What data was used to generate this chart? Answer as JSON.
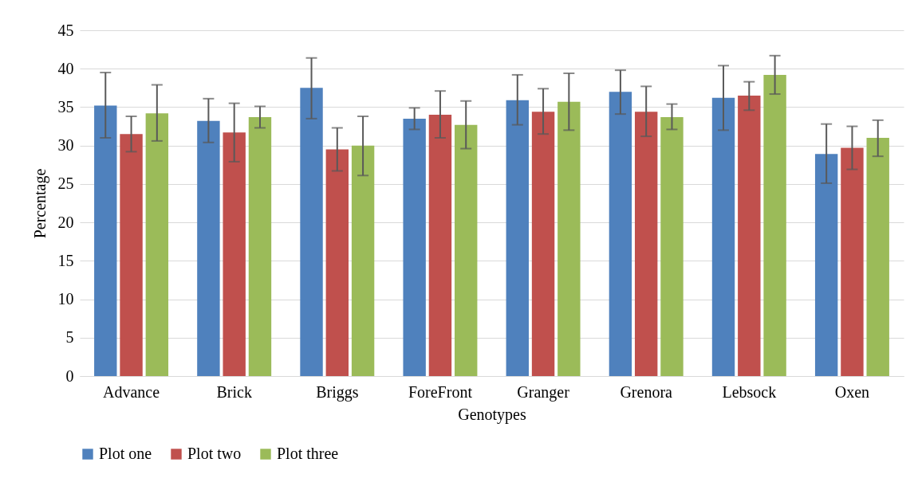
{
  "chart_data": {
    "type": "bar",
    "xlabel": "Genotypes",
    "ylabel": "Percentage",
    "categories": [
      "Advance",
      "Brick",
      "Briggs",
      "ForeFront",
      "Granger",
      "Grenora",
      "Lebsock",
      "Oxen"
    ],
    "series": [
      {
        "name": "Plot one",
        "color": "#4f81bd",
        "values": [
          35.2,
          33.2,
          37.5,
          33.5,
          35.9,
          37.0,
          36.2,
          28.9
        ],
        "errors": [
          [
            31.0,
            39.5
          ],
          [
            30.4,
            36.1
          ],
          [
            33.5,
            41.4
          ],
          [
            32.1,
            34.9
          ],
          [
            32.7,
            39.2
          ],
          [
            34.1,
            39.8
          ],
          [
            32.0,
            40.4
          ],
          [
            25.1,
            32.8
          ]
        ]
      },
      {
        "name": "Plot two",
        "color": "#c0504d",
        "values": [
          31.5,
          31.7,
          29.5,
          34.0,
          34.4,
          34.4,
          36.5,
          29.7
        ],
        "errors": [
          [
            29.2,
            33.8
          ],
          [
            27.9,
            35.5
          ],
          [
            26.7,
            32.3
          ],
          [
            31.0,
            37.1
          ],
          [
            31.5,
            37.4
          ],
          [
            31.2,
            37.7
          ],
          [
            34.6,
            38.3
          ],
          [
            26.9,
            32.5
          ]
        ]
      },
      {
        "name": "Plot three",
        "color": "#9bbb59",
        "values": [
          34.2,
          33.7,
          30.0,
          32.7,
          35.7,
          33.7,
          39.2,
          31.0
        ],
        "errors": [
          [
            30.6,
            37.9
          ],
          [
            32.3,
            35.1
          ],
          [
            26.1,
            33.8
          ],
          [
            29.6,
            35.8
          ],
          [
            32.0,
            39.4
          ],
          [
            32.1,
            35.4
          ],
          [
            36.7,
            41.7
          ],
          [
            28.6,
            33.3
          ]
        ]
      }
    ],
    "ylim": [
      0,
      45
    ],
    "yticks": [
      0,
      5,
      10,
      15,
      20,
      25,
      30,
      35,
      40,
      45
    ],
    "grid": "y",
    "legend": "bottom"
  }
}
